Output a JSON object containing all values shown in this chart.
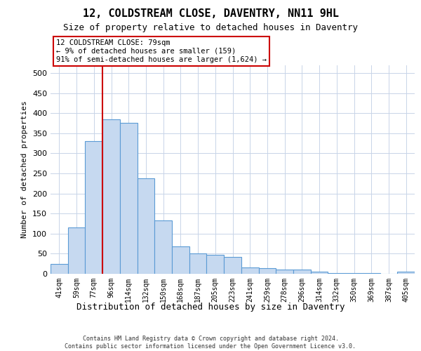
{
  "title_line1": "12, COLDSTREAM CLOSE, DAVENTRY, NN11 9HL",
  "title_line2": "Size of property relative to detached houses in Daventry",
  "xlabel": "Distribution of detached houses by size in Daventry",
  "ylabel": "Number of detached properties",
  "bin_labels": [
    "41sqm",
    "59sqm",
    "77sqm",
    "96sqm",
    "114sqm",
    "132sqm",
    "150sqm",
    "168sqm",
    "187sqm",
    "205sqm",
    "223sqm",
    "241sqm",
    "259sqm",
    "278sqm",
    "296sqm",
    "314sqm",
    "332sqm",
    "350sqm",
    "369sqm",
    "387sqm",
    "405sqm"
  ],
  "bar_heights": [
    25,
    115,
    330,
    385,
    375,
    237,
    132,
    68,
    50,
    48,
    42,
    15,
    14,
    10,
    10,
    5,
    2,
    1,
    1,
    0,
    6
  ],
  "bar_color": "#c6d9f0",
  "bar_edge_color": "#5b9bd5",
  "vline_bin_index": 2,
  "vline_color": "#cc0000",
  "annotation_line1": "12 COLDSTREAM CLOSE: 79sqm",
  "annotation_line2": "← 9% of detached houses are smaller (159)",
  "annotation_line3": "91% of semi-detached houses are larger (1,624) →",
  "annotation_box_facecolor": "#ffffff",
  "annotation_box_edgecolor": "#cc0000",
  "ylim": [
    0,
    520
  ],
  "yticks": [
    0,
    50,
    100,
    150,
    200,
    250,
    300,
    350,
    400,
    450,
    500
  ],
  "footer_line1": "Contains HM Land Registry data © Crown copyright and database right 2024.",
  "footer_line2": "Contains public sector information licensed under the Open Government Licence v3.0.",
  "background_color": "#ffffff",
  "grid_color": "#c8d4e8",
  "fig_width": 6.0,
  "fig_height": 5.0,
  "dpi": 100
}
